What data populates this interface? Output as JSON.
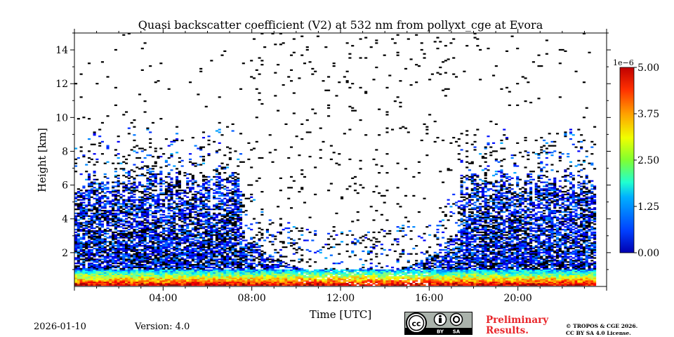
{
  "chart_data": {
    "type": "heatmap",
    "title": "Quasi backscatter coefficient (V2) at 532 nm from pollyxt_cge at Evora",
    "xlabel": "Time [UTC]",
    "ylabel": "Height [km]",
    "xlim_hours": [
      0,
      24
    ],
    "ylim_km": [
      0,
      15
    ],
    "x_ticks": [
      {
        "hour": 4,
        "label": "04:00"
      },
      {
        "hour": 8,
        "label": "08:00"
      },
      {
        "hour": 12,
        "label": "12:00"
      },
      {
        "hour": 16,
        "label": "16:00"
      },
      {
        "hour": 20,
        "label": "20:00"
      }
    ],
    "y_ticks": [
      {
        "value": 2,
        "label": "2"
      },
      {
        "value": 4,
        "label": "4"
      },
      {
        "value": 6,
        "label": "6"
      },
      {
        "value": 8,
        "label": "8"
      },
      {
        "value": 10,
        "label": "10"
      },
      {
        "value": 12,
        "label": "12"
      },
      {
        "value": 14,
        "label": "14"
      }
    ],
    "colorbar": {
      "min": 0.0,
      "max": 5e-06,
      "exponent_label": "1e−6",
      "ticks": [
        {
          "value": 0.0,
          "label": "0.00"
        },
        {
          "value": 1.25,
          "label": "1.25"
        },
        {
          "value": 2.5,
          "label": "2.50"
        },
        {
          "value": 3.75,
          "label": "3.75"
        },
        {
          "value": 5.0,
          "label": "5.00"
        }
      ],
      "colormap": "jet"
    },
    "features": {
      "aerosol_layer_top_km": 1.0,
      "noise_top_night_km": 6.5,
      "day_start_hour": 7.5,
      "day_end_hour": 17.3,
      "data_end_hour": 23.5
    }
  },
  "footer": {
    "date": "2026-01-10",
    "version": "Version: 4.0",
    "preliminary_line1": "Preliminary",
    "preliminary_line2": "Results.",
    "copyright_line1": "© TROPOS & CGE 2026.",
    "copyright_line2": "CC BY SA 4.0 License.",
    "badge_by": "BY",
    "badge_sa": "SA"
  },
  "colors": {
    "prelim": "#e8262b",
    "badge_bg": "#aab2ab"
  }
}
